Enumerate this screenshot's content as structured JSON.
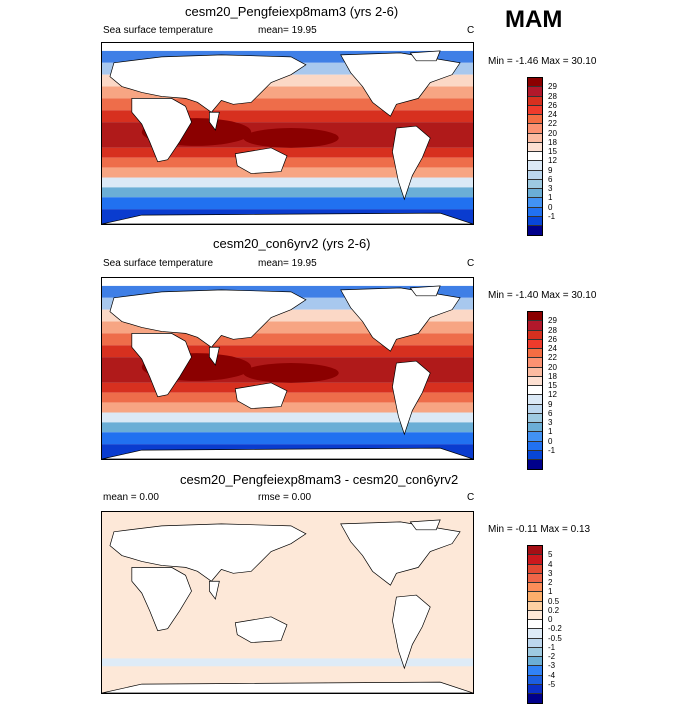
{
  "season": "MAM",
  "panels": [
    {
      "title": "cesm20_Pengfeiexp8mam3 (yrs 2-6)",
      "left_label": "Sea surface temperature",
      "mid_label": "mean=  19.95",
      "unit": "C",
      "minmax": "Min =  -1.46 Max =  30.10",
      "colorbar_labels": [
        "29",
        "28",
        "26",
        "24",
        "22",
        "20",
        "18",
        "15",
        "12",
        "9",
        "6",
        "3",
        "1",
        "0",
        "-1"
      ],
      "colorbar_colors": [
        "#8b0000",
        "#b2182b",
        "#d7301f",
        "#ef3b2c",
        "#f46d43",
        "#fc9272",
        "#fcbba1",
        "#fde0d2",
        "#ffffff",
        "#dbe9f6",
        "#bcd7ee",
        "#9ecae1",
        "#6baed6",
        "#4292f4",
        "#2171f0",
        "#0846d8",
        "#00008b"
      ]
    },
    {
      "title": "cesm20_con6yrv2 (yrs 2-6)",
      "left_label": "Sea surface temperature",
      "mid_label": "mean=  19.95",
      "unit": "C",
      "minmax": "Min =  -1.40 Max =  30.10",
      "colorbar_labels": [
        "29",
        "28",
        "26",
        "24",
        "22",
        "20",
        "18",
        "15",
        "12",
        "9",
        "6",
        "3",
        "1",
        "0",
        "-1"
      ],
      "colorbar_colors": [
        "#8b0000",
        "#b2182b",
        "#d7301f",
        "#ef3b2c",
        "#f46d43",
        "#fc9272",
        "#fcbba1",
        "#fde0d2",
        "#ffffff",
        "#dbe9f6",
        "#bcd7ee",
        "#9ecae1",
        "#6baed6",
        "#4292f4",
        "#2171f0",
        "#0846d8",
        "#00008b"
      ]
    },
    {
      "title": "cesm20_Pengfeiexp8mam3 - cesm20_con6yrv2",
      "left_label": "mean =   0.00",
      "mid_label": "rmse =   0.00",
      "unit": "C",
      "minmax": "Min =  -0.11 Max =   0.13",
      "colorbar_labels": [
        "5",
        "4",
        "3",
        "2",
        "1",
        "0.5",
        "0.2",
        "0",
        "-0.2",
        "-0.5",
        "-1",
        "-2",
        "-3",
        "-4",
        "-5"
      ],
      "colorbar_colors": [
        "#a50f15",
        "#cb181d",
        "#e34a33",
        "#ef6548",
        "#fc8d59",
        "#fdae6b",
        "#fdd0a2",
        "#fde8d8",
        "#ffffff",
        "#deebf7",
        "#bdd7ee",
        "#9ecae1",
        "#6baed6",
        "#3182f6",
        "#1c5fe0",
        "#0c30c8",
        "#00008b"
      ]
    }
  ]
}
